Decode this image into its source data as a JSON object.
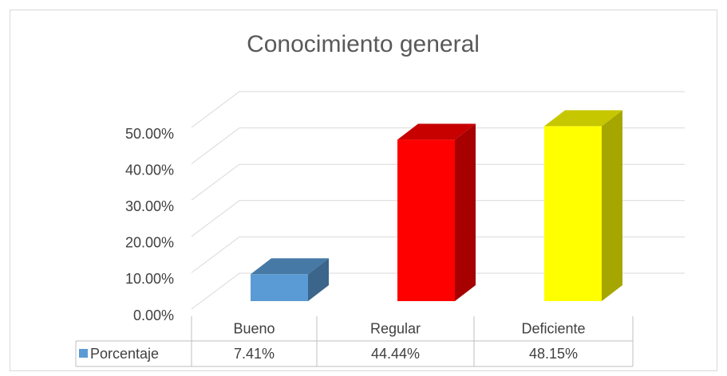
{
  "chart_data": {
    "type": "bar3d",
    "title": "Conocimiento general",
    "categories": [
      "Bueno",
      "Regular",
      "Deficiente"
    ],
    "series": [
      {
        "name": "Porcentaje",
        "values": [
          7.41,
          44.44,
          48.15
        ],
        "value_labels": [
          "7.41%",
          "44.44%",
          "48.15%"
        ],
        "colors": [
          "#5b9bd5",
          "#ff0000",
          "#ffff00"
        ]
      }
    ],
    "ylim": [
      0,
      50
    ],
    "yticks": [
      {
        "value": 0,
        "label": "0.00%"
      },
      {
        "value": 10,
        "label": "10.00%"
      },
      {
        "value": 20,
        "label": "20.00%"
      },
      {
        "value": 30,
        "label": "30.00%"
      },
      {
        "value": 40,
        "label": "40.00%"
      },
      {
        "value": 50,
        "label": "50.00%"
      }
    ],
    "grid": true,
    "data_table": true
  }
}
